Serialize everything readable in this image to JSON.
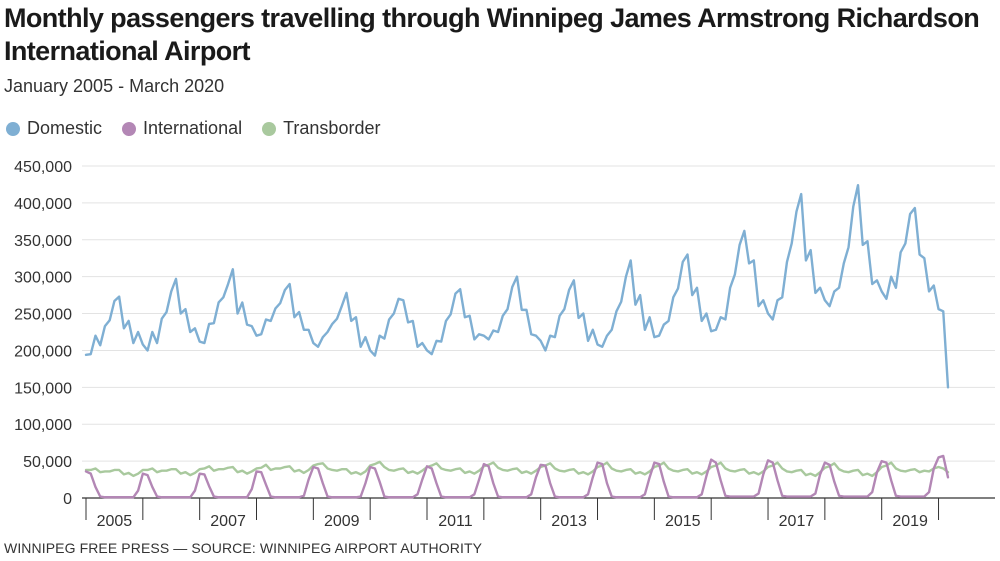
{
  "header": {
    "title": "Monthly passengers travelling through Winnipeg James Armstrong Richardson International Airport",
    "subtitle": "January 2005 - March 2020"
  },
  "footer": {
    "credit": "WINNIPEG FREE PRESS — SOURCE: WINNIPEG AIRPORT AUTHORITY"
  },
  "colors": {
    "domestic": "#7fafd3",
    "international": "#b387b5",
    "transborder": "#a9c99e"
  },
  "chart_data": {
    "type": "line",
    "title": "Monthly passengers travelling through Winnipeg James Armstrong Richardson International Airport",
    "subtitle": "January 2005 - March 2020",
    "x_start": "2005-01",
    "x_end": "2020-03",
    "x_tick_labels": [
      "2005",
      "2007",
      "2009",
      "2011",
      "2013",
      "2015",
      "2017",
      "2019"
    ],
    "y_tick_labels": [
      "0",
      "50,000",
      "100,000",
      "150,000",
      "200,000",
      "250,000",
      "300,000",
      "350,000",
      "400,000",
      "450,000"
    ],
    "ylim": [
      0,
      450000
    ],
    "grid": true,
    "legend_position": "top-left",
    "series": [
      {
        "name": "Domestic",
        "color": "#7fafd3",
        "values": [
          194000,
          195000,
          220000,
          207000,
          233000,
          241000,
          267000,
          273000,
          230000,
          240000,
          210000,
          225000,
          208000,
          200000,
          225000,
          210000,
          243000,
          252000,
          280000,
          297000,
          250000,
          256000,
          225000,
          230000,
          212000,
          210000,
          236000,
          237000,
          265000,
          272000,
          290000,
          310000,
          250000,
          265000,
          235000,
          233000,
          220000,
          222000,
          242000,
          240000,
          257000,
          264000,
          282000,
          290000,
          245000,
          252000,
          228000,
          228000,
          210000,
          205000,
          218000,
          225000,
          236000,
          243000,
          260000,
          278000,
          240000,
          245000,
          205000,
          218000,
          200000,
          193000,
          220000,
          216000,
          242000,
          250000,
          270000,
          268000,
          238000,
          240000,
          205000,
          210000,
          200000,
          195000,
          213000,
          212000,
          240000,
          249000,
          277000,
          283000,
          245000,
          247000,
          215000,
          222000,
          220000,
          215000,
          227000,
          225000,
          247000,
          256000,
          286000,
          300000,
          255000,
          255000,
          222000,
          220000,
          213000,
          200000,
          220000,
          218000,
          247000,
          256000,
          282000,
          295000,
          244000,
          250000,
          213000,
          228000,
          208000,
          205000,
          220000,
          228000,
          253000,
          266000,
          300000,
          322000,
          262000,
          275000,
          228000,
          245000,
          218000,
          220000,
          235000,
          240000,
          272000,
          284000,
          320000,
          330000,
          275000,
          285000,
          240000,
          250000,
          226000,
          228000,
          245000,
          242000,
          285000,
          303000,
          343000,
          362000,
          318000,
          322000,
          260000,
          268000,
          250000,
          242000,
          268000,
          272000,
          320000,
          345000,
          388000,
          412000,
          322000,
          336000,
          278000,
          285000,
          268000,
          260000,
          280000,
          285000,
          318000,
          340000,
          395000,
          424000,
          343000,
          348000,
          290000,
          295000,
          280000,
          270000,
          300000,
          285000,
          333000,
          345000,
          385000,
          393000,
          330000,
          325000,
          280000,
          288000,
          256000,
          253000,
          150000
        ]
      },
      {
        "name": "International",
        "color": "#b387b5",
        "values": [
          36000,
          33000,
          15000,
          2000,
          1000,
          1000,
          1000,
          1000,
          1000,
          1000,
          1000,
          10000,
          33000,
          31000,
          15000,
          2000,
          1000,
          1000,
          1000,
          1000,
          1000,
          1000,
          1000,
          10000,
          33000,
          32000,
          16000,
          2000,
          1000,
          1000,
          1000,
          1000,
          1000,
          1000,
          1000,
          12000,
          36000,
          35000,
          18000,
          2000,
          1000,
          1000,
          1000,
          1000,
          1000,
          1000,
          3000,
          25000,
          42000,
          40000,
          20000,
          2000,
          1000,
          1000,
          1000,
          1000,
          1000,
          1000,
          2000,
          20000,
          42000,
          40000,
          22000,
          2000,
          1000,
          1000,
          1000,
          1000,
          1000,
          1000,
          5000,
          25000,
          43000,
          40000,
          20000,
          2000,
          1000,
          1000,
          1000,
          1000,
          1000,
          1000,
          5000,
          25000,
          46000,
          43000,
          20000,
          2000,
          1000,
          1000,
          1000,
          1000,
          1000,
          1000,
          5000,
          28000,
          45000,
          44000,
          20000,
          2000,
          1000,
          1000,
          1000,
          1000,
          1000,
          1000,
          5000,
          28000,
          48000,
          46000,
          20000,
          2000,
          1000,
          1000,
          1000,
          1000,
          1000,
          1000,
          5000,
          28000,
          48000,
          46000,
          22000,
          2000,
          1000,
          1000,
          1000,
          1000,
          1000,
          1000,
          5000,
          30000,
          52000,
          48000,
          24000,
          3000,
          2000,
          2000,
          2000,
          2000,
          2000,
          2000,
          6000,
          32000,
          51000,
          48000,
          24000,
          3000,
          2000,
          2000,
          2000,
          2000,
          2000,
          2000,
          6000,
          32000,
          48000,
          45000,
          22000,
          3000,
          2000,
          2000,
          2000,
          2000,
          2000,
          2000,
          8000,
          35000,
          50000,
          48000,
          24000,
          3000,
          2000,
          2000,
          2000,
          2000,
          2000,
          2000,
          8000,
          40000,
          55000,
          57000,
          28000
        ]
      },
      {
        "name": "Transborder",
        "color": "#a9c99e",
        "values": [
          38000,
          38000,
          40000,
          35000,
          36000,
          36000,
          38000,
          38000,
          32000,
          34000,
          30000,
          33000,
          38000,
          38000,
          40000,
          35000,
          37000,
          37000,
          39000,
          39000,
          33000,
          35000,
          31000,
          34000,
          39000,
          40000,
          43000,
          37000,
          39000,
          39000,
          41000,
          42000,
          35000,
          37000,
          33000,
          36000,
          40000,
          41000,
          45000,
          38000,
          40000,
          40000,
          42000,
          43000,
          36000,
          38000,
          34000,
          38000,
          44000,
          46000,
          47000,
          40000,
          38000,
          37000,
          39000,
          39000,
          33000,
          35000,
          32000,
          36000,
          44000,
          46000,
          49000,
          42000,
          38000,
          37000,
          39000,
          40000,
          34000,
          36000,
          33000,
          37000,
          42000,
          44000,
          47000,
          40000,
          38000,
          37000,
          39000,
          40000,
          34000,
          36000,
          33000,
          37000,
          43000,
          45000,
          48000,
          41000,
          38000,
          37000,
          39000,
          40000,
          34000,
          36000,
          33000,
          37000,
          42000,
          44000,
          47000,
          40000,
          37000,
          36000,
          38000,
          39000,
          33000,
          35000,
          32000,
          36000,
          42000,
          44000,
          48000,
          40000,
          37000,
          36000,
          38000,
          39000,
          33000,
          35000,
          32000,
          36000,
          42000,
          44000,
          48000,
          40000,
          37000,
          36000,
          38000,
          39000,
          33000,
          35000,
          32000,
          36000,
          42000,
          44000,
          48000,
          40000,
          37000,
          36000,
          38000,
          39000,
          33000,
          35000,
          32000,
          36000,
          42000,
          44000,
          48000,
          40000,
          36000,
          35000,
          37000,
          38000,
          31000,
          33000,
          30000,
          35000,
          41000,
          43000,
          47000,
          39000,
          36000,
          35000,
          37000,
          38000,
          31000,
          33000,
          30000,
          35000,
          42000,
          44000,
          48000,
          40000,
          37000,
          36000,
          38000,
          39000,
          35000,
          37000,
          36000,
          40000,
          42000,
          40000,
          35000
        ]
      }
    ]
  }
}
